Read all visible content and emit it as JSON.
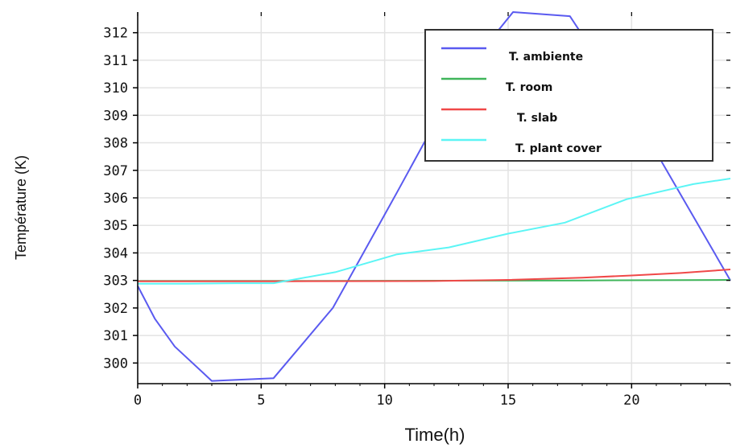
{
  "chart_data": {
    "type": "line",
    "xlabel": "Time(h)",
    "ylabel": "Température (K)",
    "xlim": [
      0,
      24
    ],
    "ylim": [
      299.25,
      312.75
    ],
    "xticks": [
      0,
      5,
      10,
      15,
      20
    ],
    "yticks": [
      300,
      301,
      302,
      303,
      304,
      305,
      306,
      307,
      308,
      309,
      310,
      311,
      312
    ],
    "grid": true,
    "legend_position": "top-right",
    "series": [
      {
        "name": "T. ambiente",
        "color": "#5a5af0",
        "x": [
          0,
          0.7,
          1.5,
          3.0,
          5.5,
          7.9,
          10.5,
          13.0,
          15.2,
          17.5,
          20.0,
          24.0
        ],
        "y": [
          302.8,
          301.6,
          300.6,
          299.35,
          299.45,
          302.0,
          306.2,
          310.3,
          312.75,
          312.6,
          309.2,
          303.0
        ]
      },
      {
        "name": "T. room",
        "color": "#3fb55a",
        "x": [
          0,
          6,
          12,
          18,
          24
        ],
        "y": [
          302.98,
          302.98,
          302.99,
          303.0,
          303.02
        ]
      },
      {
        "name": "T. slab",
        "color": "#f04848",
        "x": [
          0,
          6,
          12,
          15,
          18,
          20,
          22,
          24
        ],
        "y": [
          302.97,
          302.97,
          302.98,
          303.02,
          303.1,
          303.18,
          303.27,
          303.4
        ]
      },
      {
        "name": "T. plant cover",
        "color": "#5cf5f5",
        "x": [
          0,
          2,
          4,
          5.5,
          8,
          10.5,
          12.6,
          15.0,
          17.3,
          19.8,
          22.5,
          24.0
        ],
        "y": [
          302.88,
          302.88,
          302.9,
          302.9,
          303.3,
          303.95,
          304.2,
          304.7,
          305.1,
          305.95,
          306.5,
          306.7
        ]
      }
    ]
  }
}
